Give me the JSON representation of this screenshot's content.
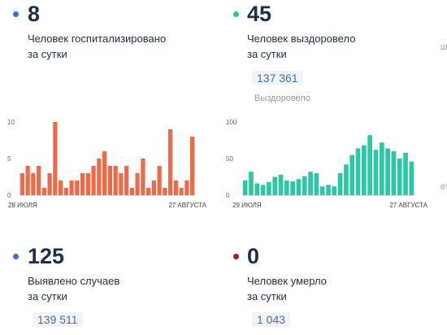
{
  "colors": {
    "blue": "#3c6fd1",
    "teal": "#2bc5a3",
    "red": "#b01919",
    "bar_orange": "#f06a48",
    "bar_teal": "#2cc8a6"
  },
  "hospital": {
    "value": "8",
    "label_line1": "Человек госпитализировано",
    "label_line2": "за сутки"
  },
  "recovered": {
    "value": "45",
    "label_line1": "Человек выздоровело",
    "label_line2": "за сутки",
    "total": "137 361",
    "total_label": "Выздоровело"
  },
  "cases": {
    "value": "125",
    "label_line1": "Выявлено случаев",
    "label_line2": "за сутки",
    "total": "139 511"
  },
  "deaths": {
    "value": "0",
    "label_line1": "Человек умерло",
    "label_line2": "за сутки",
    "total": "1 043"
  },
  "chart_data": [
    {
      "type": "bar",
      "series_color": "#f06a48",
      "ylim": [
        0,
        10
      ],
      "yticks": [
        "0",
        "5",
        "10"
      ],
      "xlabel_start": "28 июля",
      "xlabel_end": "27 августа",
      "values": [
        3,
        4,
        3,
        4,
        1,
        3,
        10,
        2,
        1,
        2,
        2,
        3,
        3,
        4,
        5,
        6,
        4,
        4,
        3,
        4,
        1,
        3,
        5,
        1,
        2,
        4,
        1,
        9,
        2,
        1,
        2,
        8
      ]
    },
    {
      "type": "bar",
      "series_color": "#2cc8a6",
      "ylim": [
        0,
        100
      ],
      "yticks": [
        "0",
        "50",
        "100"
      ],
      "xlabel_start": "29 июля",
      "xlabel_end": "27 августа",
      "values": [
        20,
        32,
        16,
        14,
        18,
        25,
        28,
        20,
        19,
        22,
        26,
        32,
        30,
        12,
        14,
        12,
        30,
        42,
        55,
        64,
        68,
        82,
        62,
        72,
        64,
        60,
        50,
        58,
        46
      ]
    }
  ],
  "edge": {
    "right_top": "ш",
    "right_mid": "ет"
  }
}
